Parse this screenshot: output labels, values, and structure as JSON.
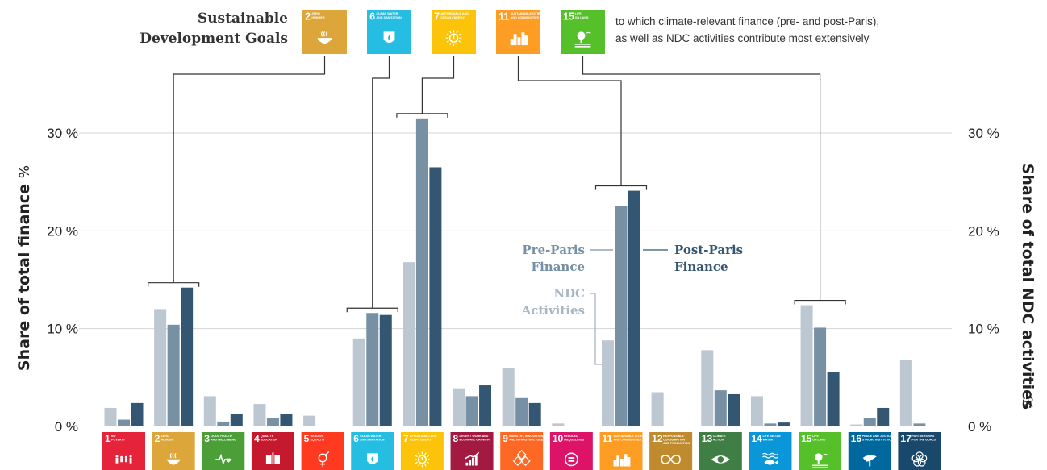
{
  "header": {
    "title_line1": "Sustainable",
    "title_line2": "Development Goals",
    "note_line1": "to which climate-relevant finance (pre- and post-Paris),",
    "note_line2": "as well as NDC activities contribute most extensively"
  },
  "colors": {
    "ndc": "#bcc7d1",
    "pre_paris": "#7790a4",
    "post_paris": "#335772",
    "gridline": "#d4d4d4",
    "bracket": "#333333"
  },
  "chart_data": {
    "type": "bar",
    "left_ylabel": "Share of total finance",
    "left_unit": "%",
    "right_ylabel": "Share of total NDC activities",
    "right_unit": "%",
    "ylim": [
      0,
      30
    ],
    "yticks": [
      "0 %",
      "10 %",
      "20 %",
      "30 %"
    ],
    "grid": true,
    "highlighted_goals": [
      2,
      6,
      7,
      11,
      15
    ],
    "series": [
      {
        "name": "NDC Activities",
        "name_line1": "NDC",
        "name_line2": "Activities",
        "values": [
          1.9,
          12.0,
          3.1,
          2.3,
          1.1,
          9.0,
          16.8,
          3.9,
          6.0,
          0.3,
          8.8,
          3.5,
          7.8,
          3.1,
          12.4,
          0.2,
          6.8
        ]
      },
      {
        "name": "Pre-Paris Finance",
        "name_line1": "Pre-Paris",
        "name_line2": "Finance",
        "values": [
          0.7,
          10.4,
          0.5,
          0.9,
          0.0,
          11.6,
          31.5,
          3.1,
          2.9,
          0.0,
          22.5,
          0.0,
          3.7,
          0.3,
          10.1,
          0.9,
          0.3
        ]
      },
      {
        "name": "Post-Paris Finance",
        "name_line1": "Post-Paris",
        "name_line2": "Finance",
        "values": [
          2.4,
          14.2,
          1.3,
          1.3,
          0.0,
          11.4,
          26.5,
          4.2,
          2.4,
          0.0,
          24.1,
          0.0,
          3.3,
          0.4,
          5.6,
          1.9,
          0.0
        ]
      }
    ],
    "categories": [
      {
        "num": "1",
        "line1": "NO",
        "line2": "POVERTY",
        "color": "#e5243b",
        "icon": "family-icon"
      },
      {
        "num": "2",
        "line1": "ZERO",
        "line2": "HUNGER",
        "color": "#dda63a",
        "icon": "bowl-icon"
      },
      {
        "num": "3",
        "line1": "GOOD HEALTH",
        "line2": "AND WELL-BEING",
        "color": "#4c9f38",
        "icon": "heartbeat-icon"
      },
      {
        "num": "4",
        "line1": "QUALITY",
        "line2": "EDUCATION",
        "color": "#c5192d",
        "icon": "book-icon"
      },
      {
        "num": "5",
        "line1": "GENDER",
        "line2": "EQUALITY",
        "color": "#ff3a21",
        "icon": "gender-icon"
      },
      {
        "num": "6",
        "line1": "CLEAN WATER",
        "line2": "AND SANITATION",
        "color": "#26bde2",
        "icon": "water-drop-icon"
      },
      {
        "num": "7",
        "line1": "AFFORDABLE AND",
        "line2": "CLEAN ENERGY",
        "color": "#fcc30b",
        "icon": "sun-power-icon"
      },
      {
        "num": "8",
        "line1": "DECENT WORK AND",
        "line2": "ECONOMIC GROWTH",
        "color": "#a21942",
        "icon": "growth-chart-icon"
      },
      {
        "num": "9",
        "line1": "INDUSTRY, INNOVATION",
        "line2": "AND INFRASTRUCTURE",
        "color": "#fd6925",
        "icon": "cubes-icon"
      },
      {
        "num": "10",
        "line1": "REDUCED",
        "line2": "INEQUALITIES",
        "color": "#dd1367",
        "icon": "equal-icon"
      },
      {
        "num": "11",
        "line1": "SUSTAINABLE CITIES",
        "line2": "AND COMMUNITIES",
        "color": "#fd9d24",
        "icon": "city-icon"
      },
      {
        "num": "12",
        "line1": "RESPONSIBLE",
        "line2": "CONSUMPTION",
        "line3": "AND PRODUCTION",
        "color": "#bf8b2e",
        "icon": "infinity-icon"
      },
      {
        "num": "13",
        "line1": "CLIMATE",
        "line2": "ACTION",
        "color": "#3f7e44",
        "icon": "eye-globe-icon"
      },
      {
        "num": "14",
        "line1": "LIFE BELOW",
        "line2": "WATER",
        "color": "#0a97d9",
        "icon": "fish-icon"
      },
      {
        "num": "15",
        "line1": "LIFE",
        "line2": "ON LAND",
        "color": "#56c02b",
        "icon": "tree-icon"
      },
      {
        "num": "16",
        "line1": "PEACE AND JUSTICE",
        "line2": "STRONG INSTITUTIONS",
        "color": "#00689d",
        "icon": "dove-icon"
      },
      {
        "num": "17",
        "line1": "PARTNERSHIPS",
        "line2": "FOR THE GOALS",
        "color": "#19486a",
        "icon": "flower-icon"
      }
    ]
  }
}
